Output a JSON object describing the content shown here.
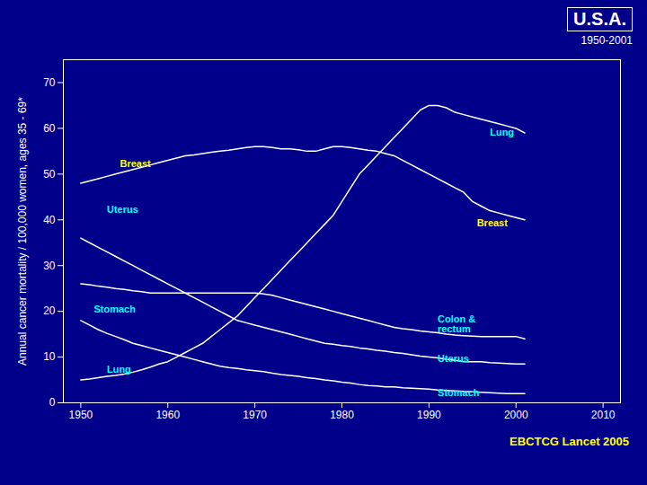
{
  "chart_data": {
    "type": "line",
    "title": "U.S.A.",
    "subtitle": "1950-2001",
    "ylabel": "Annual cancer mortality / 100,000 women, ages 35 - 69*",
    "caption": {
      "text": "EBCTCG Lancet 2005",
      "color": "#FFFF00"
    },
    "xlim": [
      1948,
      2012
    ],
    "ylim": [
      0,
      75
    ],
    "xticks": [
      1950,
      1960,
      1970,
      1980,
      1990,
      2000,
      2010
    ],
    "yticks": [
      0,
      10,
      20,
      30,
      40,
      50,
      60,
      70
    ],
    "x": [
      1950,
      1951,
      1952,
      1953,
      1954,
      1955,
      1956,
      1957,
      1958,
      1959,
      1960,
      1961,
      1962,
      1963,
      1964,
      1965,
      1966,
      1967,
      1968,
      1969,
      1970,
      1971,
      1972,
      1973,
      1974,
      1975,
      1976,
      1977,
      1978,
      1979,
      1980,
      1981,
      1982,
      1983,
      1984,
      1985,
      1986,
      1987,
      1988,
      1989,
      1990,
      1991,
      1992,
      1993,
      1994,
      1995,
      1996,
      1997,
      1998,
      1999,
      2000,
      2001
    ],
    "series": [
      {
        "name": "Breast",
        "color": "white",
        "values": [
          48,
          48.5,
          49,
          49.5,
          50,
          50.5,
          51,
          51.5,
          52,
          52.5,
          53,
          53.5,
          54,
          54.2,
          54.5,
          54.8,
          55,
          55.2,
          55.5,
          55.8,
          56,
          56,
          55.8,
          55.5,
          55.5,
          55.3,
          55,
          55,
          55.5,
          56,
          56,
          55.8,
          55.5,
          55.2,
          55,
          54.5,
          54,
          53,
          52,
          51,
          50,
          49,
          48,
          47,
          46,
          44,
          43,
          42,
          41.5,
          41,
          40.5,
          40
        ]
      },
      {
        "name": "Lung",
        "color": "white",
        "values": [
          5,
          5.2,
          5.5,
          5.8,
          6,
          6.3,
          6.7,
          7.2,
          7.8,
          8.5,
          9,
          10,
          11,
          12,
          13,
          14.5,
          16,
          17.5,
          19,
          21,
          23,
          25,
          27,
          29,
          31,
          33,
          35,
          37,
          39,
          41,
          44,
          47,
          50,
          52,
          54,
          56,
          58,
          60,
          62,
          64,
          65,
          65,
          64.5,
          63.5,
          63,
          62.5,
          62,
          61.5,
          61,
          60.5,
          60,
          59
        ]
      },
      {
        "name": "Uterus",
        "color": "white",
        "values": [
          36,
          35,
          34,
          33,
          32,
          31,
          30,
          29,
          28,
          27,
          26,
          25,
          24,
          23,
          22,
          21,
          20,
          19,
          18,
          17.5,
          17,
          16.5,
          16,
          15.5,
          15,
          14.5,
          14,
          13.5,
          13,
          12.8,
          12.5,
          12.3,
          12,
          11.8,
          11.5,
          11.3,
          11,
          10.8,
          10.5,
          10.2,
          10,
          9.8,
          9.5,
          9.3,
          9,
          9,
          9,
          8.8,
          8.7,
          8.6,
          8.5,
          8.5
        ]
      },
      {
        "name": "Stomach",
        "color": "white",
        "values": [
          18,
          17,
          16,
          15.2,
          14.5,
          13.8,
          13,
          12.5,
          12,
          11.5,
          11,
          10.5,
          10,
          9.5,
          9,
          8.5,
          8,
          7.7,
          7.5,
          7.2,
          7,
          6.8,
          6.5,
          6.2,
          6,
          5.8,
          5.5,
          5.3,
          5,
          4.8,
          4.5,
          4.3,
          4,
          3.8,
          3.7,
          3.5,
          3.5,
          3.3,
          3.2,
          3.1,
          3,
          2.8,
          2.7,
          2.6,
          2.5,
          2.4,
          2.3,
          2.2,
          2.1,
          2.0,
          2.0,
          2.0
        ]
      },
      {
        "name": "Colon & rectum",
        "color": "white",
        "values": [
          26,
          25.8,
          25.5,
          25.3,
          25,
          24.8,
          24.5,
          24.3,
          24,
          24,
          24,
          24,
          24,
          24,
          24,
          24,
          24,
          24,
          24,
          24,
          24,
          23.8,
          23.5,
          23,
          22.5,
          22,
          21.5,
          21,
          20.5,
          20,
          19.5,
          19,
          18.5,
          18,
          17.5,
          17,
          16.5,
          16.2,
          16,
          15.7,
          15.5,
          15.3,
          15,
          14.8,
          14.7,
          14.6,
          14.5,
          14.5,
          14.5,
          14.5,
          14.5,
          14
        ]
      }
    ],
    "annotations": [
      {
        "text": "Breast",
        "x": 1954.5,
        "y": 51.5,
        "color": "#FFFF00"
      },
      {
        "text": "Uterus",
        "x": 1953,
        "y": 41.5,
        "color": "#00FFFF"
      },
      {
        "text": "Stomach",
        "x": 1951.5,
        "y": 19.8,
        "color": "#00FFFF"
      },
      {
        "text": "Lung",
        "x": 1953,
        "y": 6.5,
        "color": "#00FFFF"
      },
      {
        "text": "Lung",
        "x": 1997,
        "y": 58.5,
        "color": "#00FFFF"
      },
      {
        "text": "Breast",
        "x": 1995.5,
        "y": 38.5,
        "color": "#FFFF00"
      },
      {
        "text": "Colon &\nrectum",
        "x": 1991,
        "y": 15.5,
        "color": "#00FFFF"
      },
      {
        "text": "Uterus",
        "x": 1991,
        "y": 9.0,
        "color": "#00FFFF"
      },
      {
        "text": "Stomach",
        "x": 1991,
        "y": 1.5,
        "color": "#00FFFF"
      }
    ]
  }
}
